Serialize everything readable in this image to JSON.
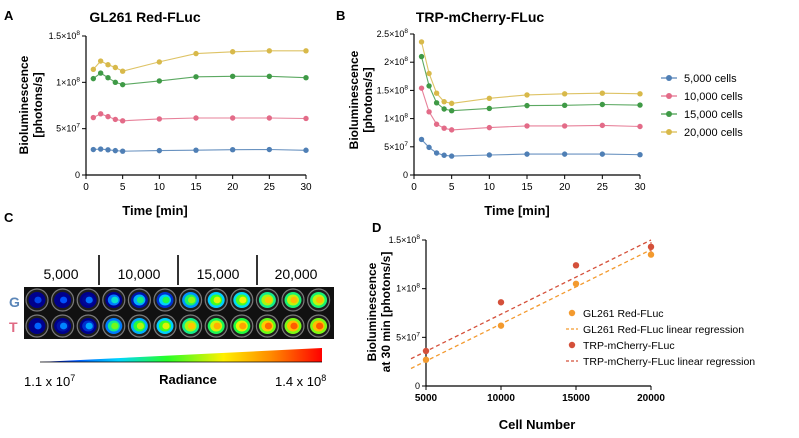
{
  "chart_data": [
    {
      "panel": "A",
      "type": "line",
      "title": "GL261 Red-FLuc",
      "xlabel": "Time [min]",
      "ylabel": [
        "Bioluminescence",
        "[photons/s]"
      ],
      "xlim": [
        0,
        30
      ],
      "ylim": [
        0,
        150000000
      ],
      "xticks": [
        0,
        5,
        10,
        15,
        20,
        25,
        30
      ],
      "yticks": [
        {
          "value": 0,
          "label": "0"
        },
        {
          "value": 50000000,
          "label": "5×10",
          "exp": "7"
        },
        {
          "value": 100000000,
          "label": "1×10",
          "exp": "8"
        },
        {
          "value": 150000000,
          "label": "1.5×10",
          "exp": "8"
        }
      ],
      "x": [
        1,
        2,
        3,
        4,
        5,
        10,
        15,
        20,
        25,
        30
      ],
      "series": [
        {
          "name": "5,000 cells",
          "color": "#4f7fb5",
          "values": [
            27500000,
            28000000,
            27200000,
            26300000,
            25700000,
            26300000,
            26800000,
            27300000,
            27500000,
            26700000
          ]
        },
        {
          "name": "10,000 cells",
          "color": "#e36b88",
          "values": [
            62000000,
            66000000,
            63000000,
            60000000,
            58500000,
            60500000,
            61500000,
            61500000,
            61500000,
            61000000
          ]
        },
        {
          "name": "15,000 cells",
          "color": "#3f9a46",
          "values": [
            104000000,
            110000000,
            105000000,
            100000000,
            97500000,
            101500000,
            106000000,
            106500000,
            106500000,
            105000000
          ]
        },
        {
          "name": "20,000 cells",
          "color": "#d8b94a",
          "values": [
            114000000,
            123000000,
            119000000,
            116000000,
            112000000,
            122000000,
            131000000,
            133000000,
            134000000,
            134000000
          ]
        }
      ]
    },
    {
      "panel": "B",
      "type": "line",
      "title": "TRP-mCherry-FLuc",
      "xlabel": "Time [min]",
      "ylabel": [
        "Bioluminescence",
        "[photons/s]"
      ],
      "xlim": [
        0,
        30
      ],
      "ylim": [
        0,
        250000000
      ],
      "xticks": [
        0,
        5,
        10,
        15,
        20,
        25,
        30
      ],
      "yticks": [
        {
          "value": 0,
          "label": "0"
        },
        {
          "value": 50000000,
          "label": "5×10",
          "exp": "7"
        },
        {
          "value": 100000000,
          "label": "1×10",
          "exp": "8"
        },
        {
          "value": 150000000,
          "label": "1.5×10",
          "exp": "8"
        },
        {
          "value": 200000000,
          "label": "2×10",
          "exp": "8"
        },
        {
          "value": 250000000,
          "label": "2.5×10",
          "exp": "8"
        }
      ],
      "x": [
        1,
        2,
        3,
        4,
        5,
        10,
        15,
        20,
        25,
        30
      ],
      "series": [
        {
          "name": "5,000 cells",
          "color": "#4f7fb5",
          "values": [
            63000000,
            49000000,
            39000000,
            35000000,
            33500000,
            35500000,
            37000000,
            37000000,
            37000000,
            36000000
          ]
        },
        {
          "name": "10,000 cells",
          "color": "#e36b88",
          "values": [
            154000000,
            112000000,
            90000000,
            83000000,
            80000000,
            84000000,
            87000000,
            87000000,
            88000000,
            86000000
          ]
        },
        {
          "name": "15,000 cells",
          "color": "#3f9a46",
          "values": [
            210000000,
            158000000,
            128000000,
            117000000,
            114000000,
            118000000,
            123000000,
            123500000,
            125000000,
            124000000
          ]
        },
        {
          "name": "20,000 cells",
          "color": "#d8b94a",
          "values": [
            236000000,
            180000000,
            145000000,
            130000000,
            127000000,
            136000000,
            142000000,
            144000000,
            145000000,
            144000000
          ]
        }
      ],
      "legend": [
        "5,000 cells",
        "10,000 cells",
        "15,000 cells",
        "20,000 cells"
      ]
    },
    {
      "panel": "D",
      "type": "scatter",
      "xlabel": "Cell Number",
      "ylabel": [
        "Bioluminescence",
        "at 30 min [photons/s]"
      ],
      "xlim": [
        5000,
        20000
      ],
      "ylim": [
        0,
        150000000
      ],
      "xticks": [
        5000,
        10000,
        15000,
        20000
      ],
      "yticks": [
        {
          "value": 0,
          "label": "0"
        },
        {
          "value": 50000000,
          "label": "5×10",
          "exp": "7"
        },
        {
          "value": 100000000,
          "label": "1×10",
          "exp": "8"
        },
        {
          "value": 150000000,
          "label": "1.5×10",
          "exp": "8"
        }
      ],
      "series": [
        {
          "name": "GL261 Red-FLuc",
          "color": "#f39a2e",
          "x": [
            5000,
            10000,
            15000,
            20000
          ],
          "values": [
            27000000,
            62000000,
            105000000,
            135000000
          ]
        },
        {
          "name": "TRP-mCherry-FLuc",
          "color": "#d4503a",
          "x": [
            5000,
            10000,
            15000,
            20000
          ],
          "values": [
            36000000,
            86000000,
            124000000,
            143000000
          ],
          "errors": [
            3000000,
            2500000,
            2000000,
            5000000
          ]
        }
      ],
      "regressions": [
        {
          "name": "GL261 Red-FLuc linear regression",
          "color": "#f39a2e",
          "x": [
            4000,
            20000
          ],
          "values": [
            18000000,
            140000000
          ]
        },
        {
          "name": "TRP-mCherry-FLuc linear regression",
          "color": "#d4503a",
          "x": [
            4000,
            20000
          ],
          "values": [
            28000000,
            150000000
          ]
        }
      ],
      "legend": [
        "GL261 Red-FLuc",
        "GL261 Red-FLuc linear regression",
        "TRP-mCherry-FLuc",
        "TRP-mCherry-FLuc linear regression"
      ]
    }
  ],
  "panel_c": {
    "label": "C",
    "column_labels": [
      "5,000",
      "10,000",
      "15,000",
      "20,000"
    ],
    "row_labels": [
      {
        "text": "G",
        "color": "#5b86b8"
      },
      {
        "text": "T",
        "color": "#e06a84"
      }
    ],
    "colorbar": {
      "title": "Radiance",
      "min_label": "1.1 x 10",
      "min_exp": "7",
      "max_label": "1.4 x 10",
      "max_exp": "8"
    },
    "well_intensity": [
      [
        0.1,
        0.12,
        0.16,
        0.32,
        0.38,
        0.42,
        0.55,
        0.62,
        0.64,
        0.72,
        0.74,
        0.74
      ],
      [
        0.14,
        0.18,
        0.22,
        0.52,
        0.58,
        0.62,
        0.72,
        0.76,
        0.78,
        0.86,
        0.88,
        0.88
      ]
    ]
  }
}
